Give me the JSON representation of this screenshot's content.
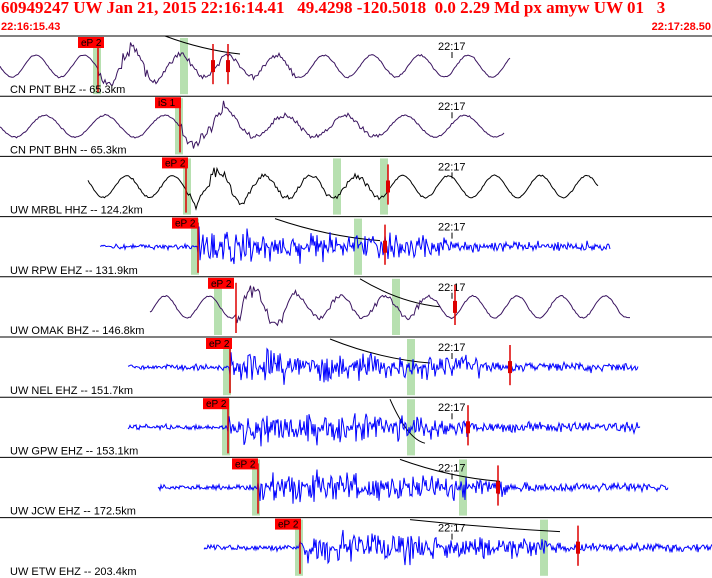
{
  "header": {
    "title": "60949247 UW Jan 21, 2015 22:16:14.41   49.4298 -120.5018  0.0 2.29 Md px amyw UW 01   3",
    "start_time": "22:16:15.43",
    "end_time": "22:17:28.50"
  },
  "colors": {
    "title": "#ff0000",
    "pick_box": "#ff0000",
    "pick_line": "#dd0000",
    "coda_window": "#b7e0b0",
    "trace_broadband": "#3a1460",
    "trace_black": "#000000",
    "trace_short_period": "#0000ff",
    "travel_time_curve": "#000000",
    "panel_border": "#000000"
  },
  "minute_marker": "22:17",
  "panels": [
    {
      "station": "CN PNT BHZ -- 65.3km",
      "pick": "eP 2",
      "trace_color": "#3a1460",
      "type": "long_period"
    },
    {
      "station": "CN PNT BHN -- 65.3km",
      "pick": "iS 1",
      "trace_color": "#3a1460",
      "type": "long_period"
    },
    {
      "station": "UW MRBL HHZ -- 124.2km",
      "pick": "eP 2",
      "trace_color": "#000000",
      "type": "long_period"
    },
    {
      "station": "UW RPW EHZ -- 131.9km",
      "pick": "eP 2",
      "trace_color": "#0000ff",
      "type": "short_period"
    },
    {
      "station": "UW OMAK BHZ -- 146.8km",
      "pick": "eP 2",
      "trace_color": "#3a1460",
      "type": "long_period"
    },
    {
      "station": "UW NEL EHZ -- 151.7km",
      "pick": "eP 2",
      "trace_color": "#0000ff",
      "type": "short_period"
    },
    {
      "station": "UW GPW EHZ -- 153.1km",
      "pick": "eP 2",
      "trace_color": "#0000ff",
      "type": "short_period"
    },
    {
      "station": "UW JCW EHZ -- 172.5km",
      "pick": "eP 2",
      "trace_color": "#0000ff",
      "type": "short_period"
    },
    {
      "station": "UW ETW EHZ -- 203.4km",
      "pick": "eP 2",
      "trace_color": "#0000ff",
      "type": "short_period"
    }
  ]
}
